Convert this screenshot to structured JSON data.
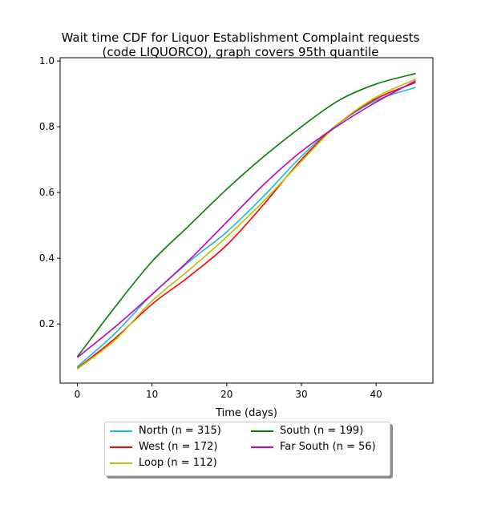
{
  "chart_data": {
    "type": "line",
    "title_line1": "Wait time CDF for Liquor Establishment Complaint  requests",
    "title_line2": "(code LIQUORCO), graph covers 95th quantile",
    "xlabel": "Time (days)",
    "ylabel": "",
    "xlim": [
      -2.3,
      47.6
    ],
    "ylim": [
      0.02,
      1.01
    ],
    "xticks": [
      0,
      10,
      20,
      30,
      40
    ],
    "yticks": [
      0.2,
      0.4,
      0.6,
      0.8,
      1.0
    ],
    "xtick_labels": [
      "0",
      "10",
      "20",
      "30",
      "40"
    ],
    "ytick_labels": [
      "0.2",
      "0.4",
      "0.6",
      "0.8",
      "1.0"
    ],
    "grid": false,
    "legend_placement": "bottom-center",
    "x": [
      0,
      5,
      10,
      15,
      20,
      25,
      30,
      35,
      40,
      45.3
    ],
    "series": [
      {
        "name": "North (n = 315)",
        "color": "#17becf",
        "values": [
          0.07,
          0.17,
          0.29,
          0.39,
          0.48,
          0.59,
          0.71,
          0.81,
          0.88,
          0.92
        ]
      },
      {
        "name": "West (n = 172)",
        "color": "#ff0000",
        "values": [
          0.065,
          0.155,
          0.26,
          0.345,
          0.44,
          0.565,
          0.7,
          0.81,
          0.885,
          0.935
        ]
      },
      {
        "name": "Loop (n = 112)",
        "color": "#bfbf00",
        "values": [
          0.063,
          0.15,
          0.27,
          0.365,
          0.465,
          0.575,
          0.695,
          0.81,
          0.89,
          0.945
        ]
      },
      {
        "name": "South (n = 199)",
        "color": "#008000",
        "values": [
          0.1,
          0.25,
          0.39,
          0.5,
          0.61,
          0.71,
          0.8,
          0.88,
          0.93,
          0.962
        ]
      },
      {
        "name": "Far South (n = 56)",
        "color": "#bf00bf",
        "values": [
          0.098,
          0.19,
          0.29,
          0.395,
          0.51,
          0.625,
          0.725,
          0.805,
          0.875,
          0.94
        ]
      }
    ]
  }
}
